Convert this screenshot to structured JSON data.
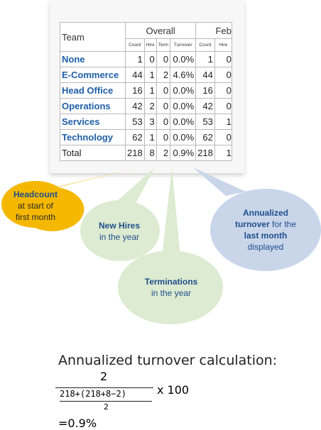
{
  "table": {
    "team_header": "Team",
    "group_overall": "Overall",
    "group_feb": "Feb",
    "sub_headers": [
      "Count",
      "Hire",
      "Term",
      "Turnover",
      "Count",
      "Hire"
    ],
    "rows": [
      {
        "team": "None",
        "count": "1",
        "hire": "0",
        "term": "0",
        "turnover": "0.0%",
        "feb_count": "1",
        "feb_hire": "0"
      },
      {
        "team": "E-Commerce",
        "count": "44",
        "hire": "1",
        "term": "2",
        "turnover": "4.6%",
        "feb_count": "44",
        "feb_hire": "0"
      },
      {
        "team": "Head Office",
        "count": "16",
        "hire": "1",
        "term": "0",
        "turnover": "0.0%",
        "feb_count": "16",
        "feb_hire": "0"
      },
      {
        "team": "Operations",
        "count": "42",
        "hire": "2",
        "term": "0",
        "turnover": "0.0%",
        "feb_count": "42",
        "feb_hire": "0"
      },
      {
        "team": "Services",
        "count": "53",
        "hire": "3",
        "term": "0",
        "turnover": "0.0%",
        "feb_count": "53",
        "feb_hire": "1"
      },
      {
        "team": "Technology",
        "count": "62",
        "hire": "1",
        "term": "0",
        "turnover": "0.0%",
        "feb_count": "62",
        "feb_hire": "0"
      },
      {
        "team": "Total",
        "count": "218",
        "hire": "8",
        "term": "2",
        "turnover": "0.9%",
        "feb_count": "218",
        "feb_hire": "1"
      }
    ]
  },
  "callouts": {
    "headcount": {
      "title": "Headcount",
      "line1": "at start of",
      "line2": "first month",
      "color": "#f5b800",
      "text_color": "#1f4e8c"
    },
    "new_hires": {
      "title": "New Hires",
      "line1": "in the year",
      "color": "#dcebd1",
      "text_color": "#1f4e8c"
    },
    "terminations": {
      "title": "Terminations",
      "line1": "in the year",
      "color": "#dcebd1",
      "text_color": "#1f4e8c"
    },
    "turnover": {
      "title": "Annualized",
      "line1_bold": "turnover",
      "line1_rest": " for the",
      "line2": "last month",
      "line3": "displayed",
      "color": "#c9d6ea",
      "text_color": "#1f4e8c"
    }
  },
  "formula": {
    "title": "Annualized turnover calculation:",
    "numerator": "2",
    "denominator": "218+(218+8−2)",
    "denominator_divisor": "2",
    "multiplier": "x 100",
    "result": "=0.9%"
  }
}
